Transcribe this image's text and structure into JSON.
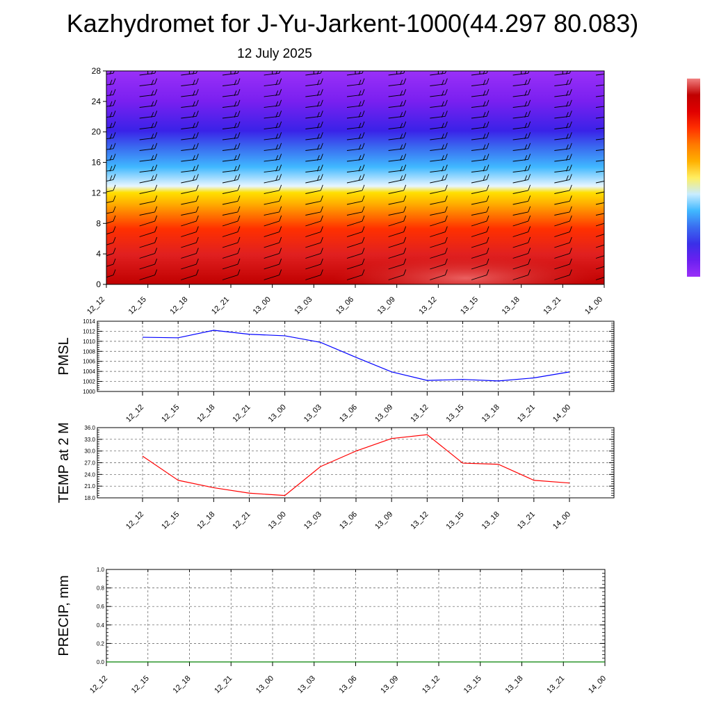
{
  "title": "Kazhydromet for J-Yu-Jarkent-1000(44.297 80.083)",
  "subtitle": "12 July 2025",
  "chart_data": [
    {
      "type": "heatmap",
      "y_ticks": [
        "0",
        "4",
        "8",
        "12",
        "16",
        "20",
        "24",
        "28"
      ],
      "ylim": [
        0,
        28
      ],
      "x_ticks": [
        "12_12",
        "12_15",
        "12_18",
        "12_21",
        "13_00",
        "13_03",
        "13_06",
        "13_09",
        "13_12",
        "13_15",
        "13_18",
        "13_21",
        "14_00"
      ],
      "colors": [
        "#c00000",
        "#e02020",
        "#ff3000",
        "#ff7a00",
        "#ffb000",
        "#ffe000",
        "#e8f6ff",
        "#40b8ff",
        "#3a6cf0",
        "#3a22e8",
        "#7a20f0",
        "#9a30f8"
      ],
      "colorbar": [
        "#9a30f8",
        "#6a20f0",
        "#3a30e8",
        "#3a6cf0",
        "#40b8ff",
        "#c8ecff",
        "#ffee60",
        "#ffb000",
        "#ff7a00",
        "#ff3000",
        "#e00000",
        "#c00000",
        "#f08080"
      ],
      "wind_barbs": true
    },
    {
      "type": "line",
      "ylabel": "PMSL",
      "x": [
        "12_12",
        "12_15",
        "12_18",
        "12_21",
        "13_00",
        "13_03",
        "13_06",
        "13_09",
        "13_12",
        "13_15",
        "13_18",
        "13_21",
        "14_00"
      ],
      "y_ticks": [
        "1000",
        "1002",
        "1004",
        "1006",
        "1008",
        "1010",
        "1012",
        "1014"
      ],
      "ylim": [
        1000,
        1014
      ],
      "series": [
        {
          "values": [
            1010.8,
            1010.7,
            1012.2,
            1011.4,
            1011.1,
            1009.8,
            1006.8,
            1003.9,
            1002.2,
            1002.4,
            1002.1,
            1002.7,
            1003.9
          ],
          "color": "#0000ff"
        }
      ],
      "grid": true
    },
    {
      "type": "line",
      "ylabel": "TEMP at 2 M",
      "x": [
        "12_12",
        "12_15",
        "12_18",
        "12_21",
        "13_00",
        "13_03",
        "13_06",
        "13_09",
        "13_12",
        "13_15",
        "13_18",
        "13_21",
        "14_00"
      ],
      "y_ticks": [
        "18.0",
        "21.0",
        "24.0",
        "27.0",
        "30.0",
        "33.0",
        "36.0"
      ],
      "ylim": [
        18,
        36
      ],
      "series": [
        {
          "values": [
            28.7,
            22.5,
            20.6,
            19.2,
            18.6,
            26.0,
            30.0,
            33.2,
            34.2,
            26.9,
            26.6,
            22.5,
            21.8
          ],
          "color": "#ff0000"
        }
      ],
      "grid": true
    },
    {
      "type": "line",
      "ylabel": "PRECIP, mm",
      "x": [
        "12_12",
        "12_15",
        "12_18",
        "12_21",
        "13_00",
        "13_03",
        "13_06",
        "13_09",
        "13_12",
        "13_15",
        "13_18",
        "13_21",
        "14_00"
      ],
      "y_ticks": [
        "0.0",
        "0.2",
        "0.4",
        "0.6",
        "0.8",
        "1.0"
      ],
      "ylim": [
        0,
        1
      ],
      "series": [
        {
          "values": [
            0,
            0,
            0,
            0,
            0,
            0,
            0,
            0,
            0,
            0,
            0,
            0,
            0
          ],
          "color": "#008000"
        }
      ],
      "grid": true
    }
  ]
}
